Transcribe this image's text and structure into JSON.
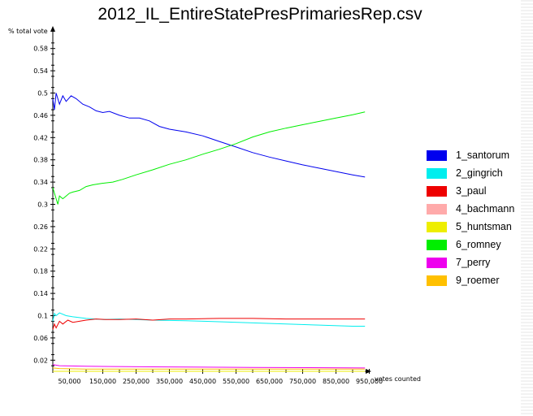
{
  "chart_data": {
    "type": "line",
    "title": "2012_IL_EntireStatePresPrimariesRep.csv",
    "xlabel": "votes counted",
    "ylabel": "% total vote",
    "xlim": [
      0,
      1000000
    ],
    "ylim": [
      0,
      0.6
    ],
    "x_ticks": [
      50000,
      150000,
      250000,
      350000,
      450000,
      550000,
      650000,
      750000,
      850000,
      950000
    ],
    "x_tick_labels": [
      "50,000",
      "150,000",
      "250,000",
      "350,000",
      "450,000",
      "550,000",
      "650,000",
      "750,000",
      "850,000",
      "950,000"
    ],
    "y_ticks": [
      0.02,
      0.06,
      0.1,
      0.14,
      0.18,
      0.22,
      0.26,
      0.3,
      0.34,
      0.38,
      0.42,
      0.46,
      0.5,
      0.54,
      0.58
    ],
    "y_tick_labels": [
      "0.02",
      "0.06",
      "0.1",
      "0.14",
      "0.18",
      "0.22",
      "0.26",
      "0.3",
      "0.34",
      "0.38",
      "0.42",
      "0.46",
      "0.5",
      "0.54",
      "0.58"
    ],
    "legend_position": "right",
    "grid": false,
    "series": [
      {
        "name": "1_santorum",
        "color": "#0000ee",
        "x": [
          0,
          5000,
          10000,
          20000,
          30000,
          40000,
          55000,
          70000,
          90000,
          110000,
          130000,
          150000,
          170000,
          200000,
          230000,
          260000,
          290000,
          320000,
          350000,
          400000,
          450000,
          500000,
          550000,
          600000,
          650000,
          700000,
          750000,
          800000,
          850000,
          900000,
          937000
        ],
        "y": [
          0.49,
          0.47,
          0.5,
          0.48,
          0.495,
          0.485,
          0.495,
          0.49,
          0.48,
          0.475,
          0.468,
          0.465,
          0.467,
          0.46,
          0.455,
          0.455,
          0.45,
          0.44,
          0.435,
          0.43,
          0.423,
          0.413,
          0.403,
          0.393,
          0.385,
          0.378,
          0.371,
          0.365,
          0.359,
          0.353,
          0.349
        ]
      },
      {
        "name": "2_gingrich",
        "color": "#00eeee",
        "x": [
          0,
          5000,
          10000,
          20000,
          40000,
          60000,
          100000,
          150000,
          200000,
          300000,
          400000,
          500000,
          600000,
          700000,
          800000,
          900000,
          937000
        ],
        "y": [
          0.09,
          0.104,
          0.1,
          0.105,
          0.1,
          0.098,
          0.095,
          0.093,
          0.094,
          0.092,
          0.091,
          0.089,
          0.087,
          0.085,
          0.083,
          0.081,
          0.081
        ]
      },
      {
        "name": "3_paul",
        "color": "#ee0000",
        "x": [
          0,
          5000,
          10000,
          20000,
          30000,
          45000,
          60000,
          80000,
          100000,
          130000,
          160000,
          200000,
          250000,
          300000,
          350000,
          400000,
          500000,
          600000,
          700000,
          800000,
          900000,
          937000
        ],
        "y": [
          0.075,
          0.085,
          0.078,
          0.09,
          0.085,
          0.092,
          0.088,
          0.09,
          0.092,
          0.094,
          0.093,
          0.093,
          0.094,
          0.092,
          0.094,
          0.094,
          0.095,
          0.095,
          0.094,
          0.094,
          0.094,
          0.094
        ]
      },
      {
        "name": "4_bachmann",
        "color": "#ffaaaa",
        "x": [
          0,
          937000
        ],
        "y": [
          0.0,
          0.0
        ]
      },
      {
        "name": "5_huntsman",
        "color": "#eeee00",
        "x": [
          0,
          937000
        ],
        "y": [
          0.0,
          0.0
        ]
      },
      {
        "name": "6_romney",
        "color": "#00ee00",
        "x": [
          0,
          5000,
          10000,
          15000,
          20000,
          30000,
          40000,
          50000,
          60000,
          80000,
          100000,
          120000,
          150000,
          180000,
          210000,
          250000,
          300000,
          350000,
          400000,
          450000,
          500000,
          550000,
          600000,
          650000,
          700000,
          750000,
          800000,
          850000,
          900000,
          937000
        ],
        "y": [
          0.33,
          0.32,
          0.31,
          0.3,
          0.315,
          0.31,
          0.315,
          0.32,
          0.322,
          0.325,
          0.332,
          0.335,
          0.338,
          0.34,
          0.345,
          0.353,
          0.362,
          0.372,
          0.38,
          0.39,
          0.399,
          0.409,
          0.421,
          0.43,
          0.437,
          0.443,
          0.449,
          0.455,
          0.461,
          0.466
        ]
      },
      {
        "name": "7_perry",
        "color": "#ee00ee",
        "x": [
          0,
          20000,
          100000,
          300000,
          600000,
          937000
        ],
        "y": [
          0.012,
          0.01,
          0.009,
          0.008,
          0.007,
          0.006
        ]
      },
      {
        "name": "9_roemer",
        "color": "#ffc000",
        "x": [
          0,
          20000,
          100000,
          300000,
          600000,
          937000
        ],
        "y": [
          0.006,
          0.005,
          0.004,
          0.004,
          0.004,
          0.004
        ]
      }
    ]
  }
}
